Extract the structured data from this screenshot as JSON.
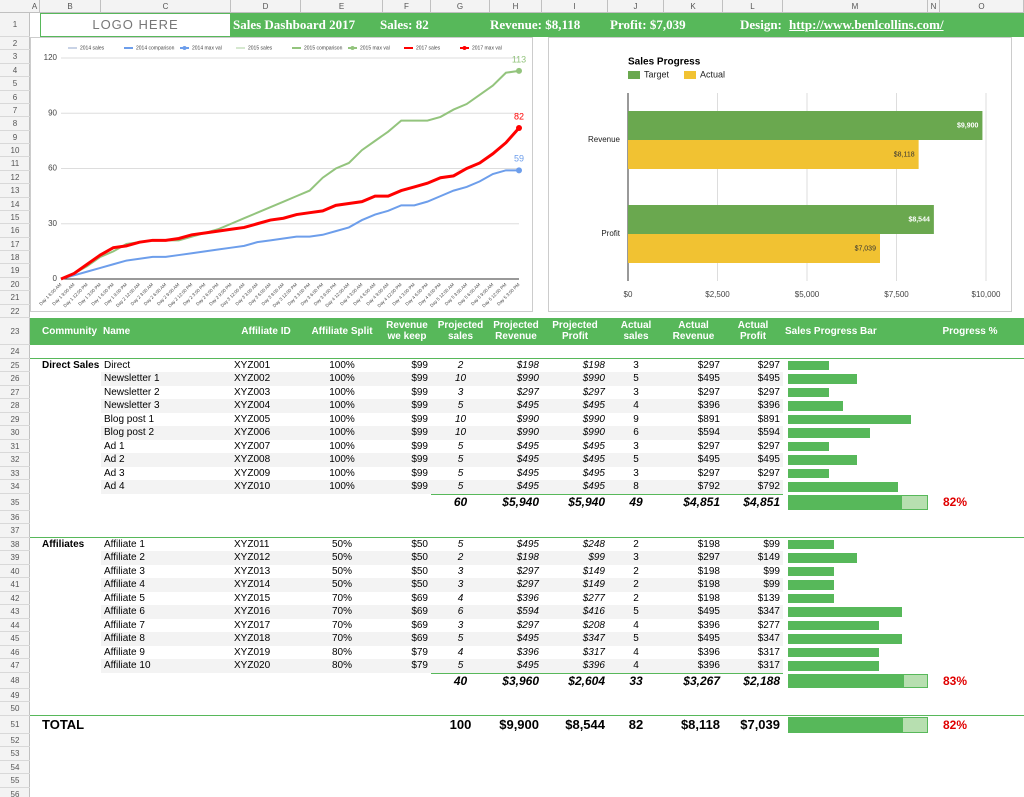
{
  "columns": [
    "A",
    "B",
    "C",
    "D",
    "E",
    "F",
    "G",
    "H",
    "I",
    "J",
    "K",
    "L",
    "M",
    "N",
    "O"
  ],
  "rows": [
    1,
    2,
    3,
    4,
    5,
    6,
    7,
    8,
    9,
    10,
    11,
    12,
    13,
    14,
    15,
    16,
    17,
    18,
    19,
    20,
    21,
    22,
    23,
    24,
    25,
    26,
    27,
    28,
    29,
    30,
    31,
    32,
    33,
    34,
    35,
    36,
    37,
    38,
    39,
    40,
    41,
    42,
    43,
    44,
    45,
    46,
    47,
    48,
    49,
    50,
    51,
    52,
    53,
    54,
    55,
    56
  ],
  "banner": {
    "logo": "LOGO HERE",
    "title": "Sales Dashboard 2017",
    "sales": "Sales: 82",
    "revenue": "Revenue: $8,118",
    "profit": "Profit: $7,039",
    "design": "Design:",
    "link": "http://www.benlcollins.com/"
  },
  "chart_data": [
    {
      "type": "line",
      "ylim": [
        0,
        120
      ],
      "yticks": [
        0,
        30,
        60,
        90,
        120
      ],
      "grid": true,
      "categories": [
        "Day 1 6:00 AM",
        "Day 1 9:00 AM",
        "Day 1 12:00 PM",
        "Day 1 3:00 PM",
        "Day 1 6:00 PM",
        "Day 1 9:00 PM",
        "Day 2 12:00 AM",
        "Day 2 3:00 AM",
        "Day 2 6:00 AM",
        "Day 2 9:00 AM",
        "Day 2 12:00 PM",
        "Day 2 3:00 PM",
        "Day 2 6:00 PM",
        "Day 2 9:00 PM",
        "Day 3 12:00 AM",
        "Day 3 3:00 AM",
        "Day 3 6:00 AM",
        "Day 3 9:00 AM",
        "Day 3 12:00 PM",
        "Day 3 3:00 PM",
        "Day 3 6:00 PM",
        "Day 3 9:00 PM",
        "Day 4 12:00 AM",
        "Day 4 3:00 AM",
        "Day 4 6:00 AM",
        "Day 4 9:00 AM",
        "Day 4 12:00 PM",
        "Day 4 3:00 PM",
        "Day 4 6:00 PM",
        "Day 4 9:00 PM",
        "Day 5 12:00 AM",
        "Day 5 3:00 AM",
        "Day 5 6:00 AM",
        "Day 5 9:00 AM",
        "Day 5 12:00 PM",
        "Day 5 3:00 PM"
      ],
      "series": [
        {
          "name": "2014 sales",
          "color": "#c9d3e6",
          "values": [
            null,
            null,
            null,
            null,
            null,
            null,
            null,
            null,
            null,
            null,
            null,
            null,
            null,
            null,
            null,
            null,
            null,
            null,
            null,
            null,
            null,
            null,
            null,
            null,
            null,
            null,
            null,
            null,
            null,
            null,
            null,
            null,
            null,
            null,
            null,
            null
          ]
        },
        {
          "name": "2014 comparison",
          "color": "#6d9eeb",
          "values": [
            0,
            2,
            4,
            6,
            8,
            10,
            11,
            12,
            12,
            13,
            14,
            15,
            16,
            17,
            18,
            20,
            21,
            22,
            23,
            23,
            24,
            26,
            28,
            32,
            35,
            37,
            40,
            40,
            42,
            45,
            48,
            50,
            53,
            57,
            59,
            59
          ]
        },
        {
          "name": "2014 max val",
          "color": "#6d9eeb",
          "marker": true,
          "values": [
            null,
            null,
            null,
            null,
            null,
            null,
            null,
            null,
            null,
            null,
            null,
            null,
            null,
            null,
            null,
            null,
            null,
            null,
            null,
            null,
            null,
            null,
            null,
            null,
            null,
            null,
            null,
            null,
            null,
            null,
            null,
            null,
            null,
            null,
            null,
            59
          ]
        },
        {
          "name": "2015 sales",
          "color": "#d5e8cf",
          "values": [
            null,
            null,
            null,
            null,
            null,
            null,
            null,
            null,
            null,
            null,
            null,
            null,
            null,
            null,
            null,
            null,
            null,
            null,
            null,
            null,
            null,
            null,
            null,
            null,
            null,
            null,
            null,
            null,
            null,
            null,
            null,
            null,
            null,
            null,
            null,
            null
          ]
        },
        {
          "name": "2015 comparison",
          "color": "#93c47d",
          "values": [
            0,
            3,
            7,
            12,
            15,
            19,
            20,
            21,
            21,
            21,
            23,
            25,
            27,
            30,
            33,
            36,
            39,
            42,
            45,
            48,
            55,
            60,
            63,
            70,
            75,
            80,
            86,
            86,
            86,
            88,
            92,
            95,
            100,
            105,
            112,
            113
          ]
        },
        {
          "name": "2015 max val",
          "color": "#93c47d",
          "marker": true,
          "values": [
            null,
            null,
            null,
            null,
            null,
            null,
            null,
            null,
            null,
            null,
            null,
            null,
            null,
            null,
            null,
            null,
            null,
            null,
            null,
            null,
            null,
            null,
            null,
            null,
            null,
            null,
            null,
            null,
            null,
            null,
            null,
            null,
            null,
            null,
            null,
            113
          ]
        },
        {
          "name": "2017 sales",
          "color": "#ff0000",
          "values": [
            0,
            3,
            8,
            13,
            17,
            18,
            20,
            21,
            21,
            22,
            24,
            25,
            26,
            27,
            28,
            30,
            32,
            33,
            35,
            36,
            37,
            40,
            41,
            42,
            45,
            45,
            48,
            50,
            52,
            55,
            56,
            60,
            63,
            68,
            74,
            82
          ]
        },
        {
          "name": "2017 max val",
          "color": "#ff0000",
          "marker": true,
          "values": [
            null,
            null,
            null,
            null,
            null,
            null,
            null,
            null,
            null,
            null,
            null,
            null,
            null,
            null,
            null,
            null,
            null,
            null,
            null,
            null,
            null,
            null,
            null,
            null,
            null,
            null,
            null,
            null,
            null,
            null,
            null,
            null,
            null,
            null,
            null,
            82
          ]
        }
      ]
    },
    {
      "type": "hbar",
      "title": "Sales Progress",
      "categories": [
        "Revenue",
        "Profit"
      ],
      "xlim": [
        0,
        10000
      ],
      "xticks": [
        {
          "value": 0,
          "label": "$0"
        },
        {
          "value": 2500,
          "label": "$2,500"
        },
        {
          "value": 5000,
          "label": "$5,000"
        },
        {
          "value": 7500,
          "label": "$7,500"
        },
        {
          "value": 10000,
          "label": "$10,000"
        }
      ],
      "grid": true,
      "series": [
        {
          "name": "Target",
          "color": "#6aa84f",
          "values": [
            9900,
            8544
          ],
          "value_labels": [
            "$9,900",
            "$8,544"
          ]
        },
        {
          "name": "Actual",
          "color": "#f1c232",
          "values": [
            8118,
            7039
          ],
          "value_labels": [
            "$8,118",
            "$7,039"
          ]
        }
      ]
    }
  ],
  "table": {
    "headers": [
      "Community",
      "Name",
      "Affiliate ID",
      "Affiliate Split",
      "Revenue we keep",
      "Projected sales",
      "Projected Revenue",
      "Projected Profit",
      "Actual sales",
      "Actual Revenue",
      "Actual Profit",
      "Sales Progress Bar",
      "Progress %"
    ],
    "sections": [
      {
        "name": "Direct Sales",
        "rows": [
          [
            "Direct",
            "XYZ001",
            "100%",
            "$99",
            2,
            "$198",
            "$198",
            3,
            "$297",
            "$297"
          ],
          [
            "Newsletter 1",
            "XYZ002",
            "100%",
            "$99",
            10,
            "$990",
            "$990",
            5,
            "$495",
            "$495"
          ],
          [
            "Newsletter 2",
            "XYZ003",
            "100%",
            "$99",
            3,
            "$297",
            "$297",
            3,
            "$297",
            "$297"
          ],
          [
            "Newsletter 3",
            "XYZ004",
            "100%",
            "$99",
            5,
            "$495",
            "$495",
            4,
            "$396",
            "$396"
          ],
          [
            "Blog post 1",
            "XYZ005",
            "100%",
            "$99",
            10,
            "$990",
            "$990",
            9,
            "$891",
            "$891"
          ],
          [
            "Blog post 2",
            "XYZ006",
            "100%",
            "$99",
            10,
            "$990",
            "$990",
            6,
            "$594",
            "$594"
          ],
          [
            "Ad 1",
            "XYZ007",
            "100%",
            "$99",
            5,
            "$495",
            "$495",
            3,
            "$297",
            "$297"
          ],
          [
            "Ad 2",
            "XYZ008",
            "100%",
            "$99",
            5,
            "$495",
            "$495",
            5,
            "$495",
            "$495"
          ],
          [
            "Ad 3",
            "XYZ009",
            "100%",
            "$99",
            5,
            "$495",
            "$495",
            3,
            "$297",
            "$297"
          ],
          [
            "Ad 4",
            "XYZ010",
            "100%",
            "$99",
            5,
            "$495",
            "$495",
            8,
            "$792",
            "$792"
          ]
        ],
        "totals": [
          60,
          "$5,940",
          "$5,940",
          49,
          "$4,851",
          "$4,851"
        ],
        "progress": "82%"
      },
      {
        "name": "Affiliates",
        "rows": [
          [
            "Affiliate 1",
            "XYZ011",
            "50%",
            "$50",
            5,
            "$495",
            "$248",
            2,
            "$198",
            "$99"
          ],
          [
            "Affiliate 2",
            "XYZ012",
            "50%",
            "$50",
            2,
            "$198",
            "$99",
            3,
            "$297",
            "$149"
          ],
          [
            "Affiliate 3",
            "XYZ013",
            "50%",
            "$50",
            3,
            "$297",
            "$149",
            2,
            "$198",
            "$99"
          ],
          [
            "Affiliate 4",
            "XYZ014",
            "50%",
            "$50",
            3,
            "$297",
            "$149",
            2,
            "$198",
            "$99"
          ],
          [
            "Affiliate 5",
            "XYZ015",
            "70%",
            "$69",
            4,
            "$396",
            "$277",
            2,
            "$198",
            "$139"
          ],
          [
            "Affiliate 6",
            "XYZ016",
            "70%",
            "$69",
            6,
            "$594",
            "$416",
            5,
            "$495",
            "$347"
          ],
          [
            "Affiliate 7",
            "XYZ017",
            "70%",
            "$69",
            3,
            "$297",
            "$208",
            4,
            "$396",
            "$277"
          ],
          [
            "Affiliate 8",
            "XYZ018",
            "70%",
            "$69",
            5,
            "$495",
            "$347",
            5,
            "$495",
            "$347"
          ],
          [
            "Affiliate 9",
            "XYZ019",
            "80%",
            "$79",
            4,
            "$396",
            "$317",
            4,
            "$396",
            "$317"
          ],
          [
            "Affiliate 10",
            "XYZ020",
            "80%",
            "$79",
            5,
            "$495",
            "$396",
            4,
            "$396",
            "$317"
          ]
        ],
        "totals": [
          40,
          "$3,960",
          "$2,604",
          33,
          "$3,267",
          "$2,188"
        ],
        "progress": "83%"
      }
    ],
    "total": {
      "label": "TOTAL",
      "values": [
        100,
        "$9,900",
        "$8,544",
        82,
        "$8,118",
        "$7,039"
      ],
      "progress": "82%"
    }
  }
}
